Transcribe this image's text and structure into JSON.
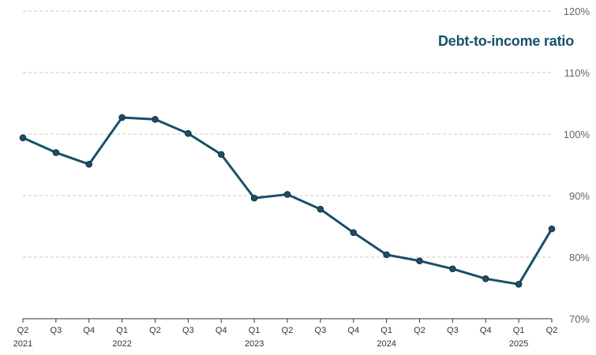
{
  "chart_data": {
    "type": "line",
    "title": "Debt-to-income ratio",
    "xlabel": "",
    "ylabel": "",
    "categories": [
      "Q2",
      "Q3",
      "Q4",
      "Q1",
      "Q2",
      "Q3",
      "Q4",
      "Q1",
      "Q2",
      "Q3",
      "Q4",
      "Q1",
      "Q2",
      "Q3",
      "Q4",
      "Q1",
      "Q2"
    ],
    "year_labels": [
      {
        "index": 0,
        "label": "2021"
      },
      {
        "index": 3,
        "label": "2022"
      },
      {
        "index": 7,
        "label": "2023"
      },
      {
        "index": 11,
        "label": "2024"
      },
      {
        "index": 15,
        "label": "2025"
      }
    ],
    "series": [
      {
        "values": [
          99.4,
          97.0,
          95.1,
          102.7,
          102.4,
          100.1,
          96.7,
          89.6,
          90.2,
          87.8,
          84.0,
          80.4,
          79.4,
          78.1,
          76.5,
          75.6,
          84.6
        ]
      }
    ],
    "ylim": [
      70,
      120
    ],
    "yticks": [
      70,
      80,
      90,
      100,
      110,
      120
    ],
    "ytick_suffix": "%",
    "y_axis_position": "right",
    "grid": true,
    "legend": "none",
    "colors": {
      "line": "#17506b",
      "point": "#17506b",
      "title": "#17506b",
      "grid": "#c8c8c8"
    }
  }
}
